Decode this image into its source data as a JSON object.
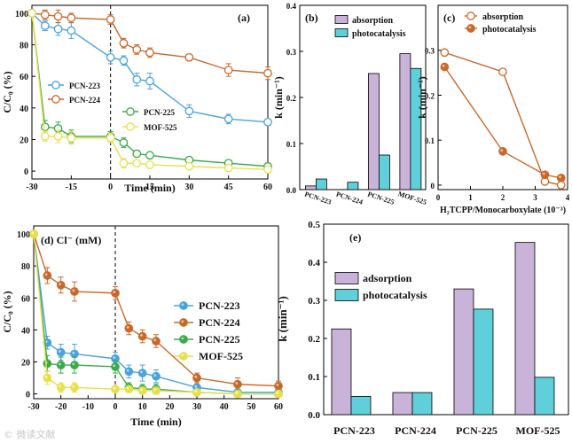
{
  "watermark": "© 微读文献",
  "colors": {
    "PCN-223": "#4aa3df",
    "PCN-224": "#c8692a",
    "PCN-225": "#3aaa4a",
    "MOF-525": "#e8e04a",
    "absorption_bar": "#c9b3d9",
    "photocatalysis_bar": "#5fd0d9",
    "axis": "#000000"
  },
  "chart_data": [
    {
      "id": "a",
      "type": "line",
      "panel_label": "(a)",
      "xlabel": "Time (min)",
      "ylabel": "C/C₀ (%)",
      "xlim": [
        -30,
        60
      ],
      "ylim": [
        -5,
        105
      ],
      "xticks": [
        -30,
        -15,
        0,
        15,
        30,
        45,
        60
      ],
      "yticks": [
        0,
        20,
        40,
        60,
        80,
        100
      ],
      "dashed_x": 0,
      "legend": [
        "PCN-223",
        "PCN-224",
        "PCN-225",
        "MOF-525"
      ],
      "series": [
        {
          "name": "PCN-223",
          "x": [
            -30,
            -25,
            -20,
            -15,
            0,
            5,
            10,
            15,
            30,
            45,
            60
          ],
          "y": [
            100,
            92,
            90,
            89,
            72,
            70,
            58,
            57,
            38,
            33,
            31
          ],
          "err": [
            0,
            3,
            4,
            5,
            4,
            3,
            4,
            5,
            4,
            3,
            2
          ]
        },
        {
          "name": "PCN-224",
          "x": [
            -30,
            -25,
            -20,
            -15,
            0,
            5,
            10,
            15,
            30,
            45,
            60
          ],
          "y": [
            100,
            99,
            98,
            97,
            96,
            81,
            77,
            75,
            72,
            64,
            62
          ],
          "err": [
            0,
            3,
            4,
            3,
            3,
            3,
            3,
            3,
            2,
            4,
            4
          ]
        },
        {
          "name": "PCN-225",
          "x": [
            -30,
            -25,
            -20,
            -15,
            0,
            5,
            10,
            15,
            30,
            45,
            60
          ],
          "y": [
            100,
            28,
            27,
            22,
            22,
            18,
            11,
            10,
            7,
            5,
            3
          ],
          "err": [
            0,
            4,
            4,
            4,
            3,
            3,
            2,
            2,
            2,
            2,
            2
          ]
        },
        {
          "name": "MOF-525",
          "x": [
            -30,
            -25,
            -20,
            -15,
            0,
            5,
            10,
            15,
            30,
            45,
            60
          ],
          "y": [
            100,
            22,
            22,
            21,
            21,
            5,
            5,
            4,
            3,
            2,
            1
          ],
          "err": [
            0,
            3,
            4,
            4,
            3,
            3,
            2,
            2,
            2,
            2,
            2
          ]
        }
      ]
    },
    {
      "id": "b",
      "type": "bar",
      "panel_label": "(b)",
      "ylabel": "k (min⁻¹)",
      "ylim": [
        0,
        0.4
      ],
      "yticks": [
        0.0,
        0.1,
        0.2,
        0.3,
        0.4
      ],
      "categories": [
        "PCN-223",
        "PCN-224",
        "PCN-225",
        "MOF-525"
      ],
      "series": [
        {
          "name": "absorption",
          "values": [
            0.008,
            0.0,
            0.252,
            0.295
          ]
        },
        {
          "name": "photocatalysis",
          "values": [
            0.023,
            0.016,
            0.075,
            0.263
          ]
        }
      ]
    },
    {
      "id": "c",
      "type": "line",
      "panel_label": "(c)",
      "xlabel": "H₂TCPP/Monocarboxylate (10⁻³)",
      "ylabel": "k (min⁻¹)",
      "xlim": [
        0,
        4
      ],
      "ylim": [
        -0.01,
        0.4
      ],
      "xticks": [
        0,
        1,
        2,
        3,
        4
      ],
      "yticks": [
        0.0,
        0.1,
        0.2,
        0.3
      ],
      "legend": [
        "absorption",
        "photocatalysis"
      ],
      "series": [
        {
          "name": "absorption",
          "x": [
            0.2,
            2.0,
            3.3,
            3.8
          ],
          "y": [
            0.295,
            0.252,
            0.008,
            0.0
          ]
        },
        {
          "name": "photocatalysis",
          "x": [
            0.2,
            2.0,
            3.3,
            3.8
          ],
          "y": [
            0.263,
            0.075,
            0.023,
            0.016
          ]
        }
      ]
    },
    {
      "id": "d",
      "type": "line",
      "panel_label": "(d) Cl⁻ (mM)",
      "xlabel": "Time (min)",
      "ylabel": "C/C₀ (%)",
      "xlim": [
        -30,
        60
      ],
      "ylim": [
        -3,
        105
      ],
      "xticks": [
        -30,
        -20,
        -10,
        0,
        10,
        20,
        30,
        40,
        50,
        60
      ],
      "yticks": [
        0,
        20,
        40,
        60,
        80,
        100
      ],
      "dashed_x": 0,
      "legend": [
        "PCN-223",
        "PCN-224",
        "PCN-225",
        "MOF-525"
      ],
      "series": [
        {
          "name": "PCN-223",
          "x": [
            -30,
            -25,
            -20,
            -15,
            0,
            5,
            10,
            15,
            30,
            45,
            60
          ],
          "y": [
            100,
            32,
            26,
            25,
            22,
            14,
            13,
            11,
            4,
            1,
            1
          ],
          "err": [
            0,
            4,
            5,
            6,
            4,
            4,
            5,
            4,
            2,
            1,
            1
          ]
        },
        {
          "name": "PCN-224",
          "x": [
            -30,
            -25,
            -20,
            -15,
            0,
            5,
            10,
            15,
            30,
            45,
            60
          ],
          "y": [
            100,
            74,
            68,
            64,
            63,
            41,
            36,
            33,
            10,
            6,
            5
          ],
          "err": [
            0,
            5,
            5,
            6,
            4,
            4,
            4,
            4,
            3,
            4,
            3
          ]
        },
        {
          "name": "PCN-225",
          "x": [
            -30,
            -25,
            -20,
            -15,
            0,
            5,
            10,
            15,
            30,
            45,
            60
          ],
          "y": [
            100,
            19,
            18,
            18,
            17,
            4,
            3,
            3,
            1,
            0,
            0
          ],
          "err": [
            0,
            5,
            5,
            5,
            4,
            3,
            3,
            3,
            1,
            1,
            1
          ]
        },
        {
          "name": "MOF-525",
          "x": [
            -30,
            -25,
            -20,
            -15,
            0,
            5,
            10,
            15,
            30,
            45,
            60
          ],
          "y": [
            100,
            10,
            4,
            4,
            3,
            3,
            2,
            2,
            1,
            0,
            0
          ],
          "err": [
            0,
            4,
            3,
            3,
            2,
            2,
            2,
            2,
            1,
            1,
            1
          ]
        }
      ]
    },
    {
      "id": "e",
      "type": "bar",
      "panel_label": "(e)",
      "ylabel": "k (min⁻¹)",
      "ylim": [
        0,
        0.5
      ],
      "yticks": [
        0.0,
        0.1,
        0.2,
        0.3,
        0.4,
        0.5
      ],
      "legend": [
        "adsorption",
        "photocatalysis"
      ],
      "categories": [
        "PCN-223",
        "PCN-224",
        "PCN-225",
        "MOF-525"
      ],
      "series": [
        {
          "name": "adsorption",
          "values": [
            0.225,
            0.058,
            0.33,
            0.452
          ]
        },
        {
          "name": "photocatalysis",
          "values": [
            0.048,
            0.058,
            0.277,
            0.098
          ]
        }
      ]
    }
  ]
}
